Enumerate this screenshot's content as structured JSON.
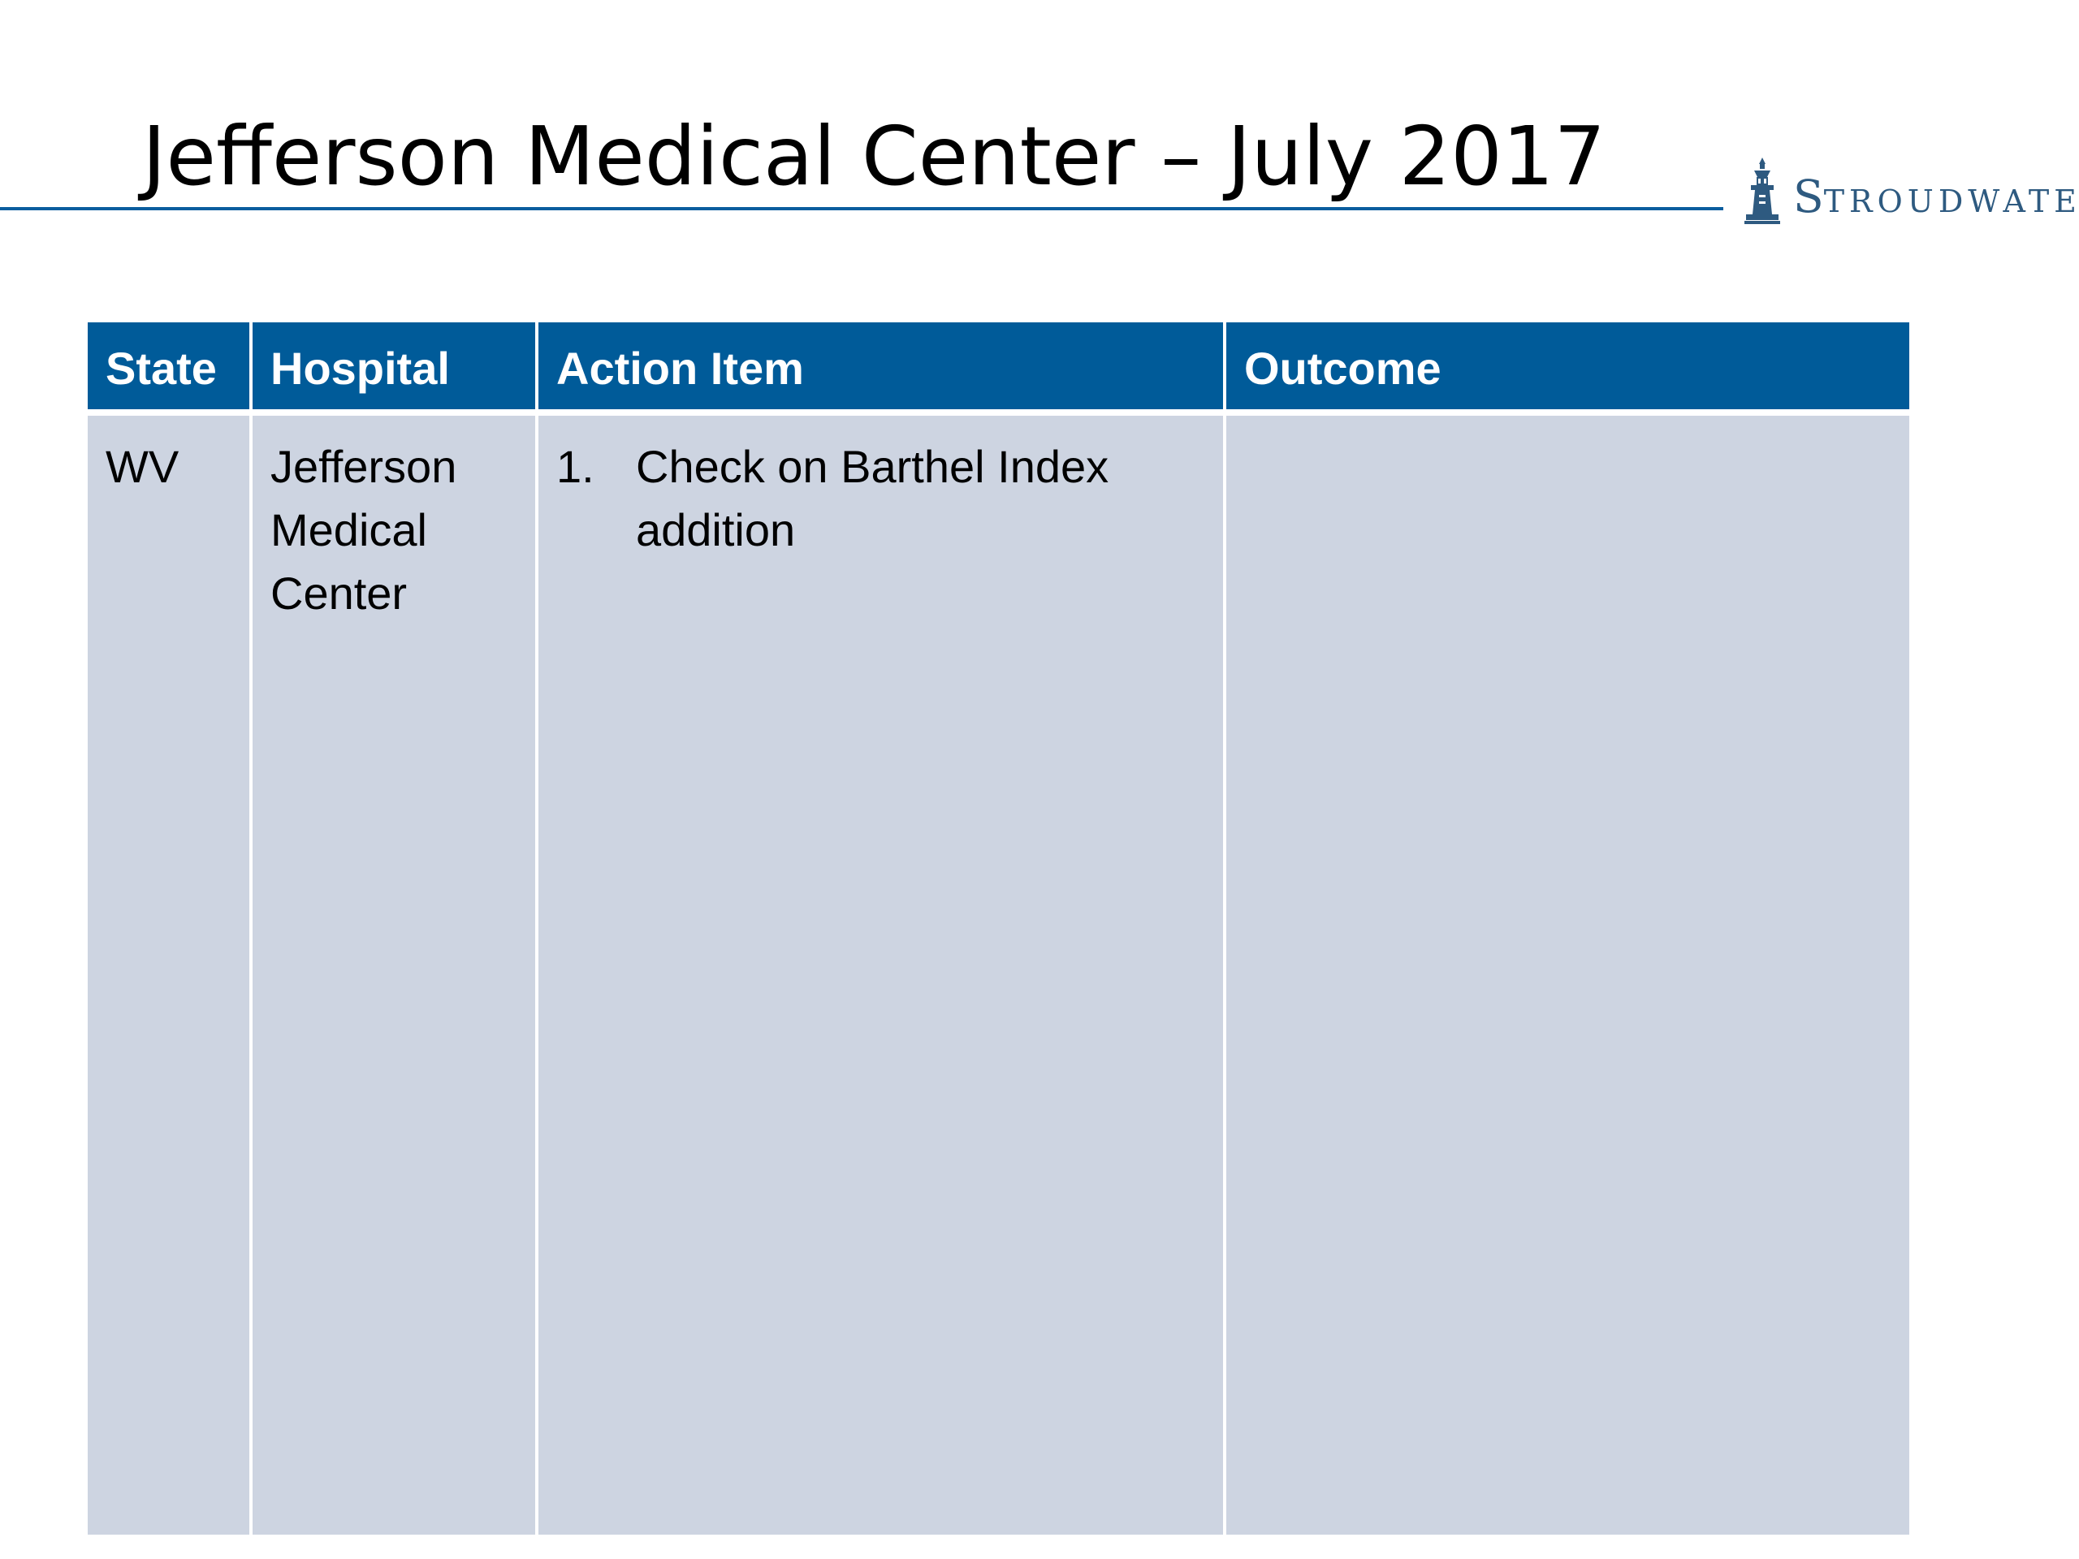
{
  "slide": {
    "title": "Jefferson Medical Center – July 2017"
  },
  "logo": {
    "first_letter": "S",
    "rest": "TROUDWATER"
  },
  "colors": {
    "accent": "#005b99",
    "rule": "#0a5d9e",
    "cell_fill": "#cdd4e1",
    "logo_text": "#2e5a80"
  },
  "table": {
    "headers": [
      "State",
      "Hospital",
      "Action Item",
      "Outcome"
    ],
    "rows": [
      {
        "state": "WV",
        "hospital": "Jefferson Medical Center",
        "action_items": [
          {
            "number": "1.",
            "text": "Check on Barthel Index addition"
          }
        ],
        "outcome": ""
      }
    ]
  }
}
